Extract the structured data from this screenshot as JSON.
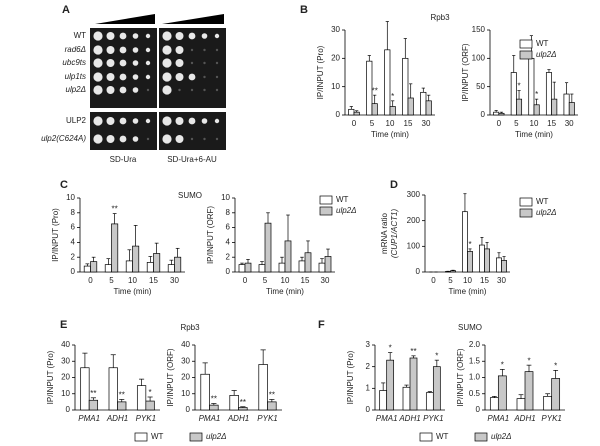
{
  "panel_a": {
    "letter": "A",
    "strains": [
      "WT",
      "rad6Δ",
      "ubc9ts",
      "ulp1ts",
      "ulp2Δ",
      "ULP2",
      "ulp2(C624A)"
    ],
    "media": [
      "SD-Ura",
      "SD-Ura+6-AU"
    ]
  },
  "panels": [
    {
      "letter": "B",
      "title": "Rpb3"
    },
    {
      "letter": "C",
      "title": "SUMO"
    },
    {
      "letter": "D"
    },
    {
      "letter": "E",
      "title": "Rpb3"
    },
    {
      "letter": "F",
      "title": "SUMO"
    }
  ],
  "chart_data": [
    {
      "type": "bar",
      "ylabel": "IP/INPUT (Pro)",
      "xlabel": "Time (min)",
      "categories": [
        "0",
        "5",
        "10",
        "15",
        "30"
      ],
      "ylim": [
        0,
        30
      ],
      "yticks": [
        0,
        10,
        20,
        30
      ],
      "series": [
        {
          "color": "#ffffff",
          "values": [
            2,
            19,
            23,
            20,
            8
          ],
          "errors": [
            1,
            2,
            10,
            7,
            1.5
          ]
        },
        {
          "color": "#c8c8c8",
          "values": [
            1,
            4,
            3,
            6,
            5
          ],
          "errors": [
            0.5,
            3,
            2,
            5,
            2
          ],
          "annotations": [
            null,
            "**",
            "*",
            null,
            null
          ]
        }
      ]
    },
    {
      "type": "bar",
      "ylabel": "IP/INPUT (ORF)",
      "xlabel": "Time (min)",
      "categories": [
        "0",
        "5",
        "10",
        "15",
        "30"
      ],
      "ylim": [
        0,
        150
      ],
      "yticks": [
        0,
        50,
        100,
        150
      ],
      "legend": "upper right",
      "series": [
        {
          "name": "WT",
          "color": "#ffffff",
          "values": [
            5,
            75,
            100,
            75,
            37
          ],
          "errors": [
            3,
            30,
            40,
            5,
            20
          ]
        },
        {
          "name": "ulp2Δ",
          "color": "#c8c8c8",
          "values": [
            3,
            28,
            18,
            28,
            22
          ],
          "errors": [
            2,
            15,
            10,
            30,
            15
          ],
          "annotations": [
            null,
            "*",
            "*",
            null,
            null
          ]
        }
      ]
    },
    {
      "type": "bar",
      "ylabel": "IP/INPUT (Pro)",
      "xlabel": "Time (min)",
      "categories": [
        "0",
        "5",
        "10",
        "15",
        "30"
      ],
      "ylim": [
        0,
        10
      ],
      "yticks": [
        0,
        2,
        4,
        6,
        8,
        10
      ],
      "series": [
        {
          "color": "#ffffff",
          "values": [
            0.8,
            1,
            1.5,
            1.3,
            1
          ],
          "errors": [
            0.3,
            0.8,
            1.5,
            0.8,
            0.6
          ]
        },
        {
          "color": "#c8c8c8",
          "values": [
            1.4,
            6.5,
            3.5,
            2.5,
            2
          ],
          "errors": [
            0.6,
            1.4,
            2.8,
            1.4,
            1.2
          ],
          "annotations": [
            null,
            "**",
            null,
            null,
            null
          ]
        }
      ]
    },
    {
      "type": "bar",
      "ylabel": "IP/INPUT (ORF)",
      "xlabel": "Time (min)",
      "categories": [
        "0",
        "5",
        "10",
        "15",
        "30"
      ],
      "ylim": [
        0,
        10
      ],
      "yticks": [
        0,
        2,
        4,
        6,
        8,
        10
      ],
      "legend": "upper right",
      "series": [
        {
          "name": "WT",
          "color": "#ffffff",
          "values": [
            1,
            1,
            1.2,
            1.5,
            1.2
          ],
          "errors": [
            0.2,
            0.4,
            0.8,
            0.5,
            0.6
          ]
        },
        {
          "name": "ulp2Δ",
          "color": "#c8c8c8",
          "values": [
            1.2,
            6.6,
            4.2,
            2.6,
            2.1
          ],
          "errors": [
            0.5,
            1.4,
            3.5,
            1.6,
            1
          ]
        }
      ],
      "annotations_note": null
    },
    {
      "type": "bar",
      "ylabel": [
        "mRNA ratio",
        "(CUP1/ACT1)"
      ],
      "xlabel": "Time (min)",
      "categories": [
        "0",
        "5",
        "10",
        "15",
        "30"
      ],
      "ylim": [
        0,
        300
      ],
      "yticks": [
        0,
        100,
        200,
        300
      ],
      "legend": "upper right",
      "series": [
        {
          "name": "WT",
          "color": "#ffffff",
          "values": [
            0,
            2,
            235,
            105,
            55
          ],
          "errors": [
            0,
            1,
            70,
            30,
            20
          ]
        },
        {
          "name": "ulp2Δ",
          "color": "#c8c8c8",
          "values": [
            0,
            5,
            80,
            90,
            45
          ],
          "errors": [
            0,
            2,
            10,
            25,
            15
          ],
          "annotations": [
            null,
            null,
            "*",
            null,
            null
          ]
        }
      ]
    },
    {
      "type": "bar",
      "ylabel": "IP/INPUT (Pro)",
      "categories": [
        "PMA1",
        "ADH1",
        "PYK1"
      ],
      "ylim": [
        0,
        40
      ],
      "yticks": [
        0,
        10,
        20,
        30,
        40
      ],
      "series": [
        {
          "color": "#ffffff",
          "values": [
            26,
            26,
            15
          ],
          "errors": [
            9,
            8,
            4
          ]
        },
        {
          "color": "#c8c8c8",
          "values": [
            6,
            5,
            5.5
          ],
          "errors": [
            1.5,
            1.5,
            2.5
          ],
          "annotations": [
            "**",
            "**",
            "*"
          ]
        }
      ]
    },
    {
      "type": "bar",
      "ylabel": "IP/INPUT (ORF)",
      "categories": [
        "PMA1",
        "ADH1",
        "PYK1"
      ],
      "ylim": [
        0,
        40
      ],
      "yticks": [
        0,
        10,
        20,
        30,
        40
      ],
      "legend": "bottom",
      "series": [
        {
          "name": "WT",
          "color": "#ffffff",
          "values": [
            22,
            9,
            28
          ],
          "errors": [
            7,
            3,
            9
          ]
        },
        {
          "name": "ulp2Δ",
          "color": "#c8c8c8",
          "values": [
            3,
            1.5,
            5
          ],
          "errors": [
            1,
            0.5,
            1.5
          ],
          "annotations": [
            "**",
            "**",
            "**"
          ]
        }
      ]
    },
    {
      "type": "bar",
      "ylabel": "IP/INPUT (Pro)",
      "categories": [
        "PMA1",
        "ADH1",
        "PYK1"
      ],
      "ylim": [
        0,
        3
      ],
      "yticks": [
        0,
        1,
        2,
        3
      ],
      "series": [
        {
          "color": "#ffffff",
          "values": [
            0.9,
            1.05,
            0.8
          ],
          "errors": [
            0.35,
            0.1,
            0.05
          ]
        },
        {
          "color": "#c8c8c8",
          "values": [
            2.3,
            2.4,
            2.0
          ],
          "errors": [
            0.35,
            0.1,
            0.3
          ],
          "annotations": [
            "*",
            "**",
            "*"
          ]
        }
      ]
    },
    {
      "type": "bar",
      "ylabel": "IP/INPUT (ORF)",
      "categories": [
        "PMA1",
        "ADH1",
        "PYK1"
      ],
      "ylim": [
        0,
        2
      ],
      "yticks": [
        0,
        0.5,
        {
          "value": 1,
          "label": "1.0"
        },
        1.5,
        {
          "value": 2,
          "label": "2.0"
        }
      ],
      "legend": "bottom",
      "series": [
        {
          "name": "WT",
          "color": "#ffffff",
          "values": [
            0.38,
            0.35,
            0.42
          ],
          "errors": [
            0.04,
            0.12,
            0.08
          ]
        },
        {
          "name": "ulp2Δ",
          "color": "#c8c8c8",
          "values": [
            1.05,
            1.18,
            0.97
          ],
          "errors": [
            0.2,
            0.2,
            0.25
          ],
          "annotations": [
            "*",
            "*",
            "*"
          ]
        }
      ]
    }
  ]
}
